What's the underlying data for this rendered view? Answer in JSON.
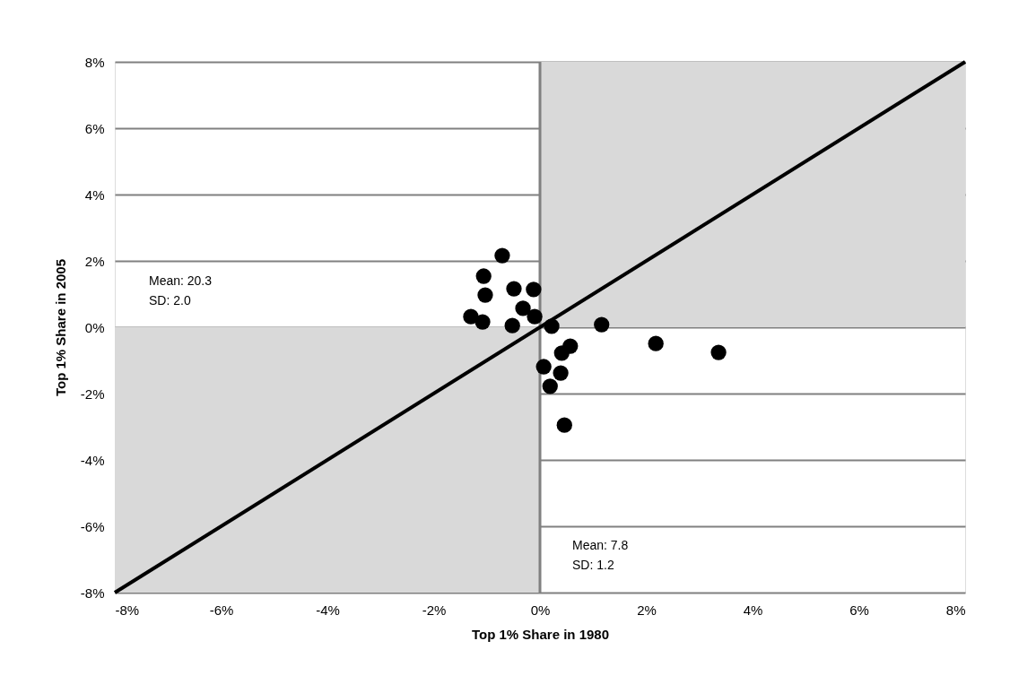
{
  "chart_data": {
    "type": "scatter",
    "xlabel": "Top 1% Share in 1980",
    "ylabel": "Top 1% Share in 2005",
    "xlim": [
      -8,
      8
    ],
    "ylim": [
      -8,
      8
    ],
    "xticks": [
      {
        "value": -8,
        "label": "-8%"
      },
      {
        "value": -6,
        "label": "-6%"
      },
      {
        "value": -4,
        "label": "-4%"
      },
      {
        "value": -2,
        "label": "-2%"
      },
      {
        "value": 0,
        "label": "0%"
      },
      {
        "value": 2,
        "label": "2%"
      },
      {
        "value": 4,
        "label": "4%"
      },
      {
        "value": 6,
        "label": "6%"
      },
      {
        "value": 8,
        "label": "8%"
      }
    ],
    "yticks": [
      {
        "value": -8,
        "label": "-8%"
      },
      {
        "value": -6,
        "label": "-6%"
      },
      {
        "value": -4,
        "label": "-4%"
      },
      {
        "value": -2,
        "label": "-2%"
      },
      {
        "value": 0,
        "label": "0%"
      },
      {
        "value": 2,
        "label": "2%"
      },
      {
        "value": 4,
        "label": "4%"
      },
      {
        "value": 6,
        "label": "6%"
      },
      {
        "value": 8,
        "label": "8%"
      }
    ],
    "grid": "y",
    "ref_lines": [
      {
        "axis": "x",
        "value": 0,
        "color": "#808080"
      }
    ],
    "series": [
      {
        "type": "area",
        "color": "#d9d9d9",
        "x": [
          0,
          8
        ],
        "values": [
          8,
          8
        ]
      },
      {
        "type": "area",
        "color": "#d9d9d9",
        "x": [
          -8,
          0
        ],
        "values": [
          -8,
          -8
        ]
      },
      {
        "marker": "circle",
        "color": "#000000",
        "x": [
          -0.71,
          -1.06,
          -1.03,
          -0.49,
          -1.3,
          -1.08,
          -0.52,
          -0.32,
          -0.12,
          -0.1,
          0.22,
          1.16,
          0.07,
          0.19,
          0.39,
          0.41,
          0.57,
          0.46,
          2.18,
          3.36
        ],
        "values": [
          2.16,
          1.54,
          0.97,
          1.16,
          0.32,
          0.16,
          0.05,
          0.57,
          1.14,
          0.32,
          0.03,
          0.08,
          -1.19,
          -1.78,
          -1.38,
          -0.78,
          -0.57,
          -2.95,
          -0.49,
          -0.76
        ]
      },
      {
        "type": "line",
        "color": "#000000",
        "line_style": "solid",
        "x": [
          -8,
          8
        ],
        "values": [
          -8,
          8
        ]
      }
    ],
    "annotations": [
      "Mean: 20.3\nSD: 2.0",
      "Mean: 7.8\nSD: 1.2"
    ]
  }
}
